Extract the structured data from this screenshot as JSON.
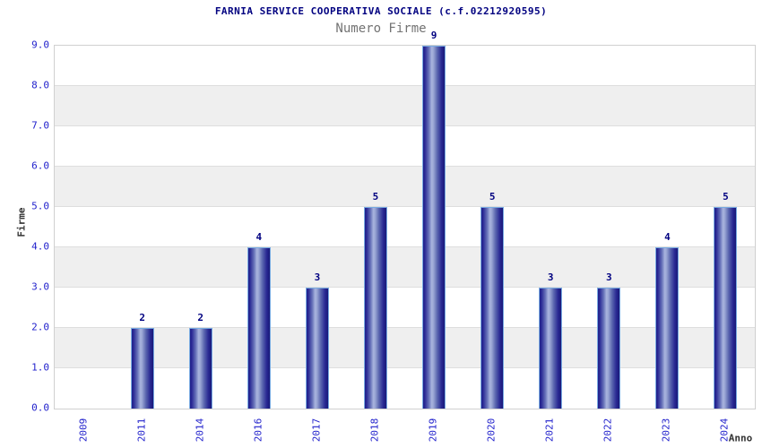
{
  "chart_data": {
    "type": "bar",
    "title": "FARNIA SERVICE COOPERATIVA SOCIALE (c.f.02212920595)",
    "subtitle": "Numero Firme",
    "xlabel": "Anno",
    "ylabel": "Firme",
    "categories": [
      "2009",
      "2011",
      "2014",
      "2016",
      "2017",
      "2018",
      "2019",
      "2020",
      "2021",
      "2022",
      "2023",
      "2024"
    ],
    "values": [
      0,
      2,
      2,
      4,
      3,
      5,
      9,
      5,
      3,
      3,
      4,
      5
    ],
    "ylim": [
      0,
      9
    ],
    "ytick_step": 1,
    "ytick_labels": [
      "0.0",
      "1.0",
      "2.0",
      "3.0",
      "4.0",
      "5.0",
      "6.0",
      "7.0",
      "8.0",
      "9.0"
    ],
    "grid": "horizontal alternating bands",
    "legend_position": "none",
    "bar_value_labels_shown": true
  },
  "colors": {
    "title": "#000080",
    "subtitle": "#737373",
    "tick_label": "#2222cc",
    "axis_title": "#333333",
    "band_gray": "#efefef",
    "band_white": "#ffffff",
    "gridline": "#dedede",
    "plot_border": "#d0d0d0",
    "bar_border": "#79abe2",
    "bar_dark": "#20208a",
    "bar_highlight": "#a9b4de",
    "value_label": "#000080"
  }
}
